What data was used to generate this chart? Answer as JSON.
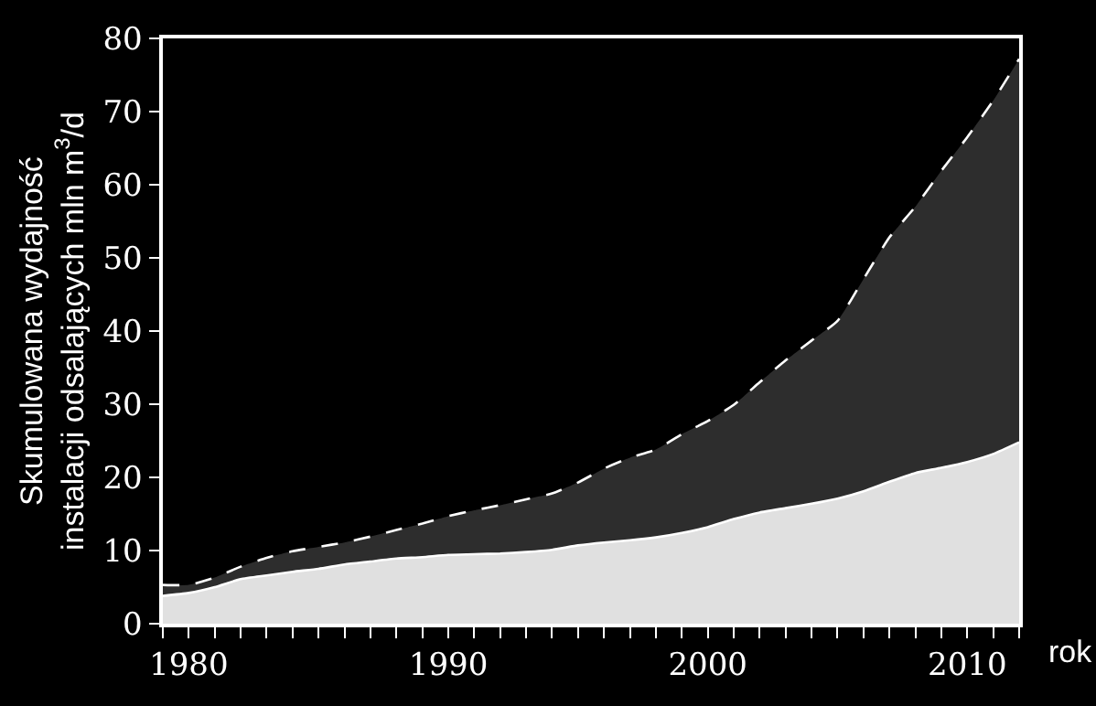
{
  "chart_data": {
    "type": "area",
    "xlabel": "rok",
    "ylabel": "Skumulowana wydajność\ninstalacji odsalających mln m$^{3}$/d",
    "x": [
      1979,
      1980,
      1981,
      1982,
      1983,
      1984,
      1985,
      1986,
      1987,
      1988,
      1989,
      1990,
      1991,
      1992,
      1993,
      1994,
      1995,
      1996,
      1997,
      1998,
      1999,
      2000,
      2001,
      2002,
      2003,
      2004,
      2005,
      2006,
      2007,
      2008,
      2009,
      2010,
      2011,
      2012
    ],
    "series": [
      {
        "color": "#2d2d2d",
        "line_style": "dashed",
        "values": [
          5.3,
          5.3,
          6.3,
          7.8,
          9.0,
          9.9,
          10.5,
          11.1,
          11.9,
          12.8,
          13.7,
          14.7,
          15.5,
          16.2,
          17.0,
          17.8,
          19.3,
          21.2,
          22.7,
          23.8,
          25.9,
          27.7,
          29.9,
          33.0,
          36.0,
          38.7,
          41.4,
          47.1,
          52.8,
          57.0,
          61.9,
          66.5,
          71.5,
          77.2
        ]
      },
      {
        "color": "#e0e0e0",
        "line_style": "solid",
        "values": [
          3.8,
          4.2,
          5.0,
          6.1,
          6.6,
          7.1,
          7.5,
          8.1,
          8.5,
          8.9,
          9.1,
          9.4,
          9.5,
          9.6,
          9.8,
          10.1,
          10.7,
          11.1,
          11.4,
          11.8,
          12.4,
          13.2,
          14.3,
          15.2,
          15.8,
          16.4,
          17.1,
          18.1,
          19.4,
          20.6,
          21.3,
          22.1,
          23.2,
          24.8
        ]
      }
    ],
    "xlim": [
      1979,
      2012
    ],
    "xticks": [
      {
        "value": 1979,
        "label": null
      },
      {
        "value": 1980,
        "label": "1980"
      },
      {
        "value": 1981,
        "label": null
      },
      {
        "value": 1982,
        "label": null
      },
      {
        "value": 1983,
        "label": null
      },
      {
        "value": 1984,
        "label": null
      },
      {
        "value": 1985,
        "label": null
      },
      {
        "value": 1986,
        "label": null
      },
      {
        "value": 1987,
        "label": null
      },
      {
        "value": 1988,
        "label": null
      },
      {
        "value": 1989,
        "label": null
      },
      {
        "value": 1990,
        "label": "1990"
      },
      {
        "value": 1991,
        "label": null
      },
      {
        "value": 1992,
        "label": null
      },
      {
        "value": 1993,
        "label": null
      },
      {
        "value": 1994,
        "label": null
      },
      {
        "value": 1995,
        "label": null
      },
      {
        "value": 1996,
        "label": null
      },
      {
        "value": 1997,
        "label": null
      },
      {
        "value": 1998,
        "label": null
      },
      {
        "value": 1999,
        "label": null
      },
      {
        "value": 2000,
        "label": "2000"
      },
      {
        "value": 2001,
        "label": null
      },
      {
        "value": 2002,
        "label": null
      },
      {
        "value": 2003,
        "label": null
      },
      {
        "value": 2004,
        "label": null
      },
      {
        "value": 2005,
        "label": null
      },
      {
        "value": 2006,
        "label": null
      },
      {
        "value": 2007,
        "label": null
      },
      {
        "value": 2008,
        "label": null
      },
      {
        "value": 2009,
        "label": null
      },
      {
        "value": 2010,
        "label": "2010"
      },
      {
        "value": 2011,
        "label": null
      },
      {
        "value": 2012,
        "label": null
      }
    ],
    "ylim": [
      0,
      80
    ],
    "yticks": [
      0,
      10,
      20,
      30,
      40,
      50,
      60,
      70,
      80
    ],
    "grid": false
  }
}
